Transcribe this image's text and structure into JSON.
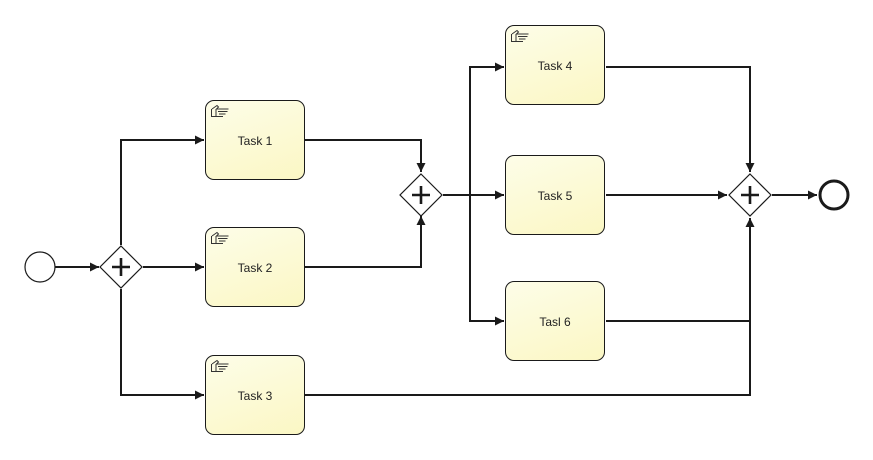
{
  "diagram": {
    "colors": {
      "task_fill_top": "#fdfde8",
      "task_fill_bottom": "#fbf7c4",
      "stroke": "#1a1a1a",
      "background": "#ffffff"
    },
    "tasks": [
      {
        "id": "task-1",
        "label": "Task 1",
        "icon": "manual-task-hand-icon"
      },
      {
        "id": "task-2",
        "label": "Task 2",
        "icon": "manual-task-hand-icon"
      },
      {
        "id": "task-3",
        "label": "Task 3",
        "icon": "manual-task-hand-icon"
      },
      {
        "id": "task-4",
        "label": "Task 4",
        "icon": "manual-task-hand-icon"
      },
      {
        "id": "task-5",
        "label": "Task 5",
        "icon": null
      },
      {
        "id": "task-6",
        "label": "Tasl 6",
        "icon": null
      }
    ],
    "events": [
      {
        "id": "start-event",
        "type": "start"
      },
      {
        "id": "end-event",
        "type": "end"
      }
    ],
    "gateways": [
      {
        "id": "gateway-split-1",
        "type": "parallel"
      },
      {
        "id": "gateway-join-1",
        "type": "parallel"
      },
      {
        "id": "gateway-join-2",
        "type": "parallel"
      }
    ],
    "flows": [
      {
        "from": "start-event",
        "to": "gateway-split-1"
      },
      {
        "from": "gateway-split-1",
        "to": "task-1"
      },
      {
        "from": "gateway-split-1",
        "to": "task-2"
      },
      {
        "from": "gateway-split-1",
        "to": "task-3"
      },
      {
        "from": "task-1",
        "to": "gateway-join-1"
      },
      {
        "from": "task-2",
        "to": "gateway-join-1"
      },
      {
        "from": "gateway-join-1",
        "to": "task-4"
      },
      {
        "from": "gateway-join-1",
        "to": "task-5"
      },
      {
        "from": "gateway-join-1",
        "to": "task-6"
      },
      {
        "from": "task-4",
        "to": "gateway-join-2"
      },
      {
        "from": "task-5",
        "to": "gateway-join-2"
      },
      {
        "from": "task-6",
        "to": "gateway-join-2"
      },
      {
        "from": "task-3",
        "to": "gateway-join-2"
      },
      {
        "from": "gateway-join-2",
        "to": "end-event"
      }
    ]
  }
}
